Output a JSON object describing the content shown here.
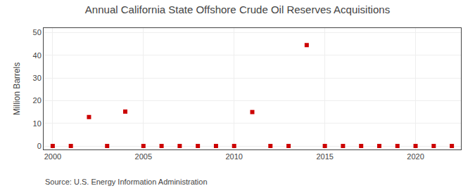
{
  "chart_data": {
    "type": "scatter",
    "title": "Annual California State Offshore Crude Oil Reserves Acquisitions",
    "ylabel": "Million Barrels",
    "annotations": [
      "Source: U.S. Energy Information Administration"
    ],
    "x": [
      2000,
      2001,
      2002,
      2003,
      2004,
      2005,
      2006,
      2007,
      2008,
      2009,
      2010,
      2011,
      2012,
      2013,
      2014,
      2015,
      2016,
      2017,
      2018,
      2019,
      2020,
      2021,
      2022
    ],
    "values": [
      0.05,
      0.05,
      12.8,
      0.05,
      15.2,
      0.05,
      0.05,
      0.05,
      0.05,
      0.05,
      0.05,
      15.0,
      0.05,
      0.05,
      44.5,
      0.05,
      0.05,
      0.05,
      0.05,
      0.05,
      0.05,
      0.05,
      0.05
    ],
    "color": "#cc0000",
    "marker": "square",
    "xlim": [
      1999.5,
      2022.5
    ],
    "ylim": [
      -1.5,
      52
    ],
    "xticks": [
      2000,
      2005,
      2010,
      2015,
      2020
    ],
    "yticks": [
      0,
      10,
      20,
      30,
      40,
      50
    ],
    "grid": true
  }
}
